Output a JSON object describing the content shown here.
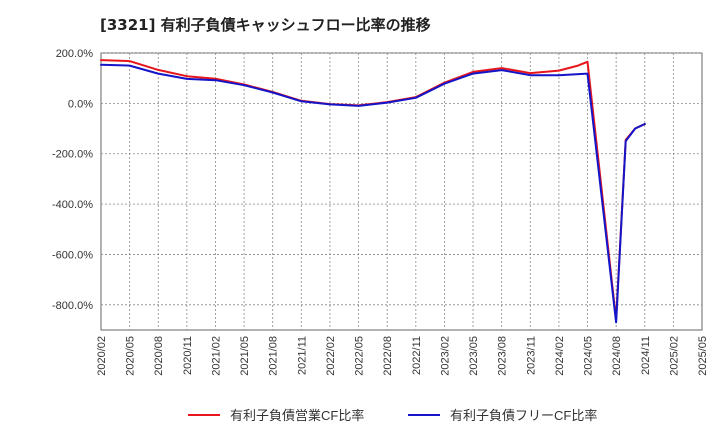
{
  "chart_data": {
    "type": "line",
    "title": "[3321]  有利子負債キャッシュフロー比率の推移",
    "x": [
      "2020/02",
      "2020/05",
      "2020/08",
      "2020/11",
      "2021/02",
      "2021/05",
      "2021/08",
      "2021/11",
      "2022/02",
      "2022/05",
      "2022/08",
      "2022/11",
      "2023/02",
      "2023/05",
      "2023/08",
      "2023/11",
      "2024/02",
      "2024/05",
      "2024/08",
      "2024/11",
      "2025/02",
      "2025/05"
    ],
    "ylim": [
      -900,
      200
    ],
    "yticks": [
      200,
      0,
      -200,
      -400,
      -600,
      -800
    ],
    "ytick_labels": [
      "200.0%",
      "0.0%",
      "-200.0%",
      "-400.0%",
      "-600.0%",
      "-800.0%"
    ],
    "grid": true,
    "legend_position": "bottom",
    "series": [
      {
        "name": "有利子負債営業CF比率",
        "color": "#e8151b",
        "points": [
          [
            "2020/02",
            172
          ],
          [
            "2020/05",
            168
          ],
          [
            "2020/08",
            133
          ],
          [
            "2020/11",
            108
          ],
          [
            "2021/02",
            98
          ],
          [
            "2021/05",
            75
          ],
          [
            "2021/08",
            45
          ],
          [
            "2021/11",
            10
          ],
          [
            "2022/02",
            -3
          ],
          [
            "2022/05",
            -8
          ],
          [
            "2022/08",
            5
          ],
          [
            "2022/11",
            25
          ],
          [
            "2023/02",
            82
          ],
          [
            "2023/05",
            125
          ],
          [
            "2023/08",
            140
          ],
          [
            "2023/11",
            120
          ],
          [
            "2024/02",
            130
          ],
          [
            "2024/04",
            150
          ],
          [
            "2024/05",
            165
          ],
          [
            "2024/08",
            -860
          ],
          [
            "2024/09",
            -145
          ],
          [
            "2024/10",
            -100
          ],
          [
            "2024/11",
            -82
          ]
        ]
      },
      {
        "name": "有利子負債フリーCF比率",
        "color": "#1414c8",
        "points": [
          [
            "2020/02",
            153
          ],
          [
            "2020/05",
            150
          ],
          [
            "2020/08",
            118
          ],
          [
            "2020/11",
            97
          ],
          [
            "2021/02",
            92
          ],
          [
            "2021/05",
            72
          ],
          [
            "2021/08",
            43
          ],
          [
            "2021/11",
            8
          ],
          [
            "2022/02",
            -4
          ],
          [
            "2022/05",
            -10
          ],
          [
            "2022/08",
            3
          ],
          [
            "2022/11",
            22
          ],
          [
            "2023/02",
            78
          ],
          [
            "2023/05",
            118
          ],
          [
            "2023/08",
            132
          ],
          [
            "2023/11",
            112
          ],
          [
            "2024/02",
            112
          ],
          [
            "2024/05",
            118
          ],
          [
            "2024/08",
            -870
          ],
          [
            "2024/09",
            -150
          ],
          [
            "2024/10",
            -100
          ],
          [
            "2024/11",
            -82
          ]
        ]
      }
    ]
  }
}
